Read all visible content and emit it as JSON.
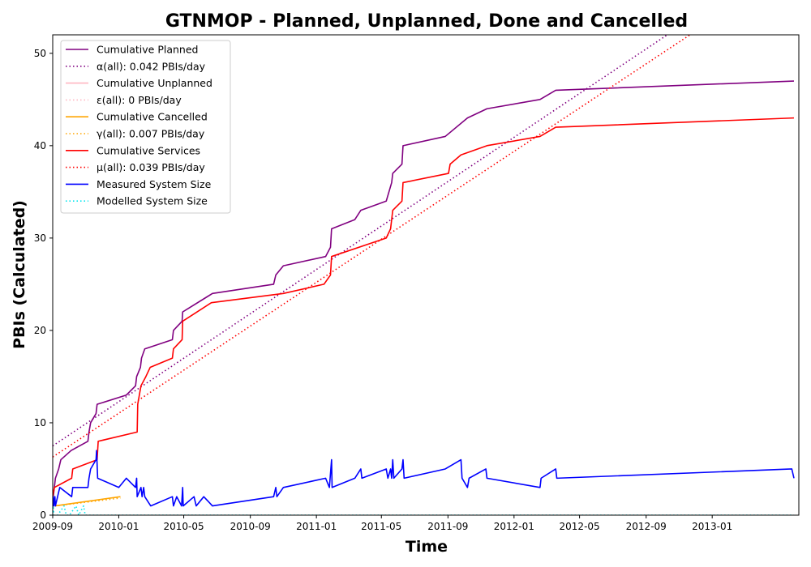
{
  "chart_data": {
    "type": "line",
    "title": "GTNMOP - Planned, Unplanned, Done  and Cancelled",
    "xlabel": "Time",
    "ylabel": "PBIs (Calculated)",
    "xlim": [
      "2009-09-01",
      "2013-06-10"
    ],
    "ylim": [
      0,
      52
    ],
    "x_ticks": [
      "2009-09",
      "2010-01",
      "2010-05",
      "2010-09",
      "2011-01",
      "2011-05",
      "2011-09",
      "2012-01",
      "2012-05",
      "2012-09",
      "2013-01"
    ],
    "y_ticks": [
      0,
      10,
      20,
      30,
      40,
      50
    ],
    "grid": false,
    "legend_position": "upper-left",
    "series": [
      {
        "name": "Cumulative Planned",
        "color": "#800080",
        "style": "solid",
        "points": [
          [
            "2009-09-01",
            1
          ],
          [
            "2009-09-02",
            2
          ],
          [
            "2009-09-04",
            3
          ],
          [
            "2009-09-06",
            4
          ],
          [
            "2009-09-12",
            5
          ],
          [
            "2009-09-16",
            6
          ],
          [
            "2009-10-05",
            7
          ],
          [
            "2009-11-05",
            8
          ],
          [
            "2009-11-07",
            9
          ],
          [
            "2009-11-10",
            10
          ],
          [
            "2009-11-20",
            11
          ],
          [
            "2009-11-22",
            12
          ],
          [
            "2010-01-15",
            13
          ],
          [
            "2010-02-01",
            14
          ],
          [
            "2010-02-03",
            15
          ],
          [
            "2010-02-10",
            16
          ],
          [
            "2010-02-12",
            17
          ],
          [
            "2010-02-18",
            18
          ],
          [
            "2010-04-10",
            19
          ],
          [
            "2010-04-12",
            20
          ],
          [
            "2010-04-28",
            21
          ],
          [
            "2010-04-29",
            22
          ],
          [
            "2010-06-23",
            24
          ],
          [
            "2010-10-14",
            25
          ],
          [
            "2010-10-18",
            26
          ],
          [
            "2010-11-01",
            27
          ],
          [
            "2011-01-18",
            28
          ],
          [
            "2011-01-27",
            29
          ],
          [
            "2011-01-29",
            31
          ],
          [
            "2011-03-13",
            32
          ],
          [
            "2011-03-24",
            33
          ],
          [
            "2011-05-10",
            34
          ],
          [
            "2011-05-20",
            36
          ],
          [
            "2011-05-22",
            37
          ],
          [
            "2011-06-08",
            38
          ],
          [
            "2011-06-10",
            40
          ],
          [
            "2011-08-27",
            41
          ],
          [
            "2011-10-07",
            43
          ],
          [
            "2011-11-12",
            44
          ],
          [
            "2012-02-18",
            45
          ],
          [
            "2012-03-18",
            46
          ],
          [
            "2013-06-01",
            47
          ]
        ]
      },
      {
        "name": "α(all): 0.042 PBIs/day",
        "color": "#800080",
        "style": "dotted",
        "points": [
          [
            "2009-09-01",
            7.5
          ],
          [
            "2012-10-10",
            52.0
          ]
        ]
      },
      {
        "name": "Cumulative Unplanned",
        "color": "#ffb6c1",
        "style": "solid",
        "points": []
      },
      {
        "name": "ε(all): 0 PBIs/day",
        "color": "#ffb6c1",
        "style": "dotted",
        "points": []
      },
      {
        "name": "Cumulative Cancelled",
        "color": "#ffa500",
        "style": "solid",
        "points": [
          [
            "2009-09-05",
            1
          ],
          [
            "2010-01-04",
            2
          ]
        ]
      },
      {
        "name": "γ(all): 0.007 PBIs/day",
        "color": "#ffa500",
        "style": "dotted",
        "points": [
          [
            "2009-09-05",
            1.0
          ],
          [
            "2010-01-04",
            1.85
          ]
        ]
      },
      {
        "name": "Cumulative Services",
        "color": "#ff0000",
        "style": "solid",
        "points": [
          [
            "2009-09-01",
            2
          ],
          [
            "2009-09-04",
            3
          ],
          [
            "2009-10-06",
            4
          ],
          [
            "2009-10-08",
            5
          ],
          [
            "2009-11-22",
            6
          ],
          [
            "2009-11-24",
            8
          ],
          [
            "2010-02-04",
            9
          ],
          [
            "2010-02-05",
            12
          ],
          [
            "2010-02-08",
            13
          ],
          [
            "2010-02-11",
            14
          ],
          [
            "2010-02-20",
            15
          ],
          [
            "2010-02-28",
            16
          ],
          [
            "2010-04-10",
            17
          ],
          [
            "2010-04-12",
            18
          ],
          [
            "2010-04-28",
            19
          ],
          [
            "2010-04-29",
            21
          ],
          [
            "2010-06-21",
            23
          ],
          [
            "2010-11-01",
            24
          ],
          [
            "2011-01-15",
            25
          ],
          [
            "2011-01-27",
            26
          ],
          [
            "2011-01-29",
            28
          ],
          [
            "2011-05-10",
            30
          ],
          [
            "2011-05-18",
            31
          ],
          [
            "2011-05-22",
            33
          ],
          [
            "2011-06-08",
            34
          ],
          [
            "2011-06-10",
            36
          ],
          [
            "2011-09-02",
            37
          ],
          [
            "2011-09-05",
            38
          ],
          [
            "2011-09-25",
            39
          ],
          [
            "2011-11-12",
            40
          ],
          [
            "2012-02-18",
            41
          ],
          [
            "2012-03-18",
            42
          ],
          [
            "2013-06-01",
            43
          ]
        ]
      },
      {
        "name": "μ(all): 0.039 PBIs/day",
        "color": "#ff0000",
        "style": "dotted",
        "points": [
          [
            "2009-09-01",
            6.3
          ],
          [
            "2012-11-21",
            52.0
          ]
        ]
      },
      {
        "name": "Measured System Size",
        "color": "#0000ff",
        "style": "solid",
        "points": [
          [
            "2009-09-01",
            1
          ],
          [
            "2009-09-02",
            2
          ],
          [
            "2009-09-03",
            1
          ],
          [
            "2009-09-05",
            2
          ],
          [
            "2009-09-06",
            1
          ],
          [
            "2009-09-14",
            3
          ],
          [
            "2009-10-06",
            2
          ],
          [
            "2009-10-08",
            3
          ],
          [
            "2009-11-05",
            3
          ],
          [
            "2009-11-07",
            4
          ],
          [
            "2009-11-10",
            5
          ],
          [
            "2009-11-20",
            6
          ],
          [
            "2009-11-21",
            7
          ],
          [
            "2009-11-23",
            4
          ],
          [
            "2010-01-01",
            3
          ],
          [
            "2010-01-15",
            4
          ],
          [
            "2010-02-01",
            3
          ],
          [
            "2010-02-03",
            4
          ],
          [
            "2010-02-04",
            2
          ],
          [
            "2010-02-11",
            3
          ],
          [
            "2010-02-13",
            2
          ],
          [
            "2010-02-16",
            3
          ],
          [
            "2010-02-18",
            2
          ],
          [
            "2010-03-01",
            1
          ],
          [
            "2010-04-10",
            2
          ],
          [
            "2010-04-12",
            1
          ],
          [
            "2010-04-18",
            2
          ],
          [
            "2010-04-27",
            1
          ],
          [
            "2010-04-29",
            3
          ],
          [
            "2010-04-30",
            1
          ],
          [
            "2010-05-20",
            2
          ],
          [
            "2010-05-24",
            1
          ],
          [
            "2010-06-07",
            2
          ],
          [
            "2010-06-23",
            1
          ],
          [
            "2010-10-14",
            2
          ],
          [
            "2010-10-18",
            3
          ],
          [
            "2010-10-20",
            2
          ],
          [
            "2010-11-01",
            3
          ],
          [
            "2011-01-18",
            4
          ],
          [
            "2011-01-25",
            3
          ],
          [
            "2011-01-29",
            6
          ],
          [
            "2011-01-30",
            3
          ],
          [
            "2011-03-13",
            4
          ],
          [
            "2011-03-24",
            5
          ],
          [
            "2011-03-26",
            4
          ],
          [
            "2011-05-10",
            5
          ],
          [
            "2011-05-13",
            4
          ],
          [
            "2011-05-18",
            5
          ],
          [
            "2011-05-20",
            4
          ],
          [
            "2011-05-22",
            6
          ],
          [
            "2011-05-24",
            4
          ],
          [
            "2011-06-08",
            5
          ],
          [
            "2011-06-10",
            6
          ],
          [
            "2011-06-12",
            4
          ],
          [
            "2011-08-27",
            5
          ],
          [
            "2011-09-25",
            6
          ],
          [
            "2011-09-27",
            4
          ],
          [
            "2011-10-07",
            3
          ],
          [
            "2011-10-10",
            4
          ],
          [
            "2011-11-10",
            5
          ],
          [
            "2011-11-12",
            4
          ],
          [
            "2012-02-18",
            3
          ],
          [
            "2012-02-20",
            4
          ],
          [
            "2012-03-18",
            5
          ],
          [
            "2012-03-20",
            4
          ],
          [
            "2013-05-28",
            5
          ],
          [
            "2013-06-01",
            4
          ]
        ]
      },
      {
        "name": "Modelled System Size",
        "color": "#00e5ee",
        "style": "dotted",
        "points": [
          [
            "2009-09-01",
            0
          ],
          [
            "2009-09-02",
            1
          ],
          [
            "2009-09-03",
            0
          ],
          [
            "2009-09-10",
            0
          ],
          [
            "2009-09-22",
            1
          ],
          [
            "2009-09-26",
            0
          ],
          [
            "2009-10-02",
            0
          ],
          [
            "2009-10-14",
            1
          ],
          [
            "2009-10-19",
            0
          ],
          [
            "2009-10-28",
            1
          ],
          [
            "2009-10-31",
            0
          ],
          [
            "2013-06-01",
            0
          ]
        ]
      }
    ]
  }
}
